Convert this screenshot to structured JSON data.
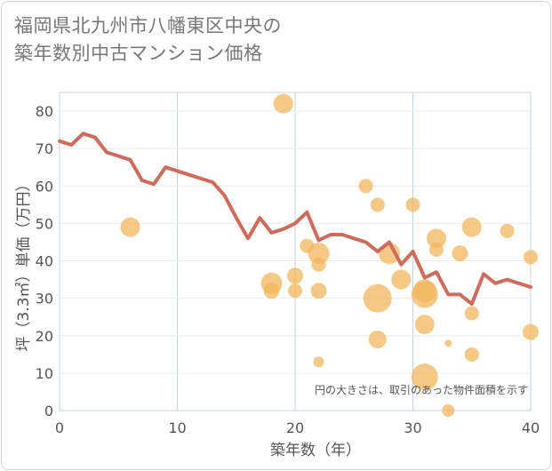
{
  "title_lines": [
    "福岡県北九州市八幡東区中央の",
    "築年数別中古マンション価格"
  ],
  "colors": {
    "line": "#d06a5b",
    "bubble": "#f2b55c",
    "grid": "#c5d3e0",
    "plot_bg": "#ffffff"
  },
  "chart_data": {
    "type": "scatter",
    "title": "福岡県北九州市八幡東区中央の築年数別中古マンション価格",
    "xlabel": "築年数（年）",
    "ylabel": "坪（3.3㎡）単価（万円）",
    "xlim": [
      0,
      40
    ],
    "ylim": [
      0,
      85
    ],
    "xticks": [
      "0",
      "10",
      "20",
      "30",
      "40"
    ],
    "yticks": [
      "0",
      "10",
      "20",
      "30",
      "40",
      "50",
      "60",
      "70",
      "80"
    ],
    "grid": true,
    "note": "円の大きさは、取引のあった物件面積を示す",
    "series": [
      {
        "kind": "line",
        "x": [
          0,
          1,
          2,
          3,
          4,
          5,
          6,
          7,
          8,
          9,
          10,
          11,
          12,
          13,
          14,
          15,
          16,
          17,
          18,
          19,
          20,
          21,
          22,
          23,
          24,
          25,
          26,
          27,
          28,
          29,
          30,
          31,
          32,
          33,
          34,
          35,
          36,
          37,
          38,
          39,
          40
        ],
        "y": [
          72,
          71,
          74,
          73,
          69,
          68,
          67,
          61.5,
          60.5,
          65,
          64,
          63,
          62,
          61,
          57.5,
          51.5,
          46,
          51.5,
          47.5,
          48.5,
          50,
          53,
          45.5,
          47,
          47,
          46,
          45,
          42.5,
          45,
          39,
          42.5,
          35.5,
          37,
          31,
          31,
          28.5,
          36.5,
          34,
          35,
          34,
          33
        ]
      },
      {
        "kind": "bubble",
        "points": [
          {
            "x": 6,
            "y": 49,
            "r": 11
          },
          {
            "x": 18,
            "y": 32,
            "r": 9
          },
          {
            "x": 18,
            "y": 34,
            "r": 12
          },
          {
            "x": 19,
            "y": 82,
            "r": 11
          },
          {
            "x": 20,
            "y": 36,
            "r": 9
          },
          {
            "x": 20,
            "y": 32,
            "r": 8
          },
          {
            "x": 21,
            "y": 44,
            "r": 8
          },
          {
            "x": 22,
            "y": 42,
            "r": 12
          },
          {
            "x": 22,
            "y": 39,
            "r": 8
          },
          {
            "x": 22,
            "y": 32,
            "r": 9
          },
          {
            "x": 22,
            "y": 13,
            "r": 6
          },
          {
            "x": 26,
            "y": 60,
            "r": 8
          },
          {
            "x": 27,
            "y": 55,
            "r": 8
          },
          {
            "x": 27,
            "y": 30,
            "r": 16
          },
          {
            "x": 27,
            "y": 19,
            "r": 10
          },
          {
            "x": 28,
            "y": 42,
            "r": 12
          },
          {
            "x": 29,
            "y": 35,
            "r": 11
          },
          {
            "x": 30,
            "y": 55,
            "r": 8
          },
          {
            "x": 31,
            "y": 32,
            "r": 13
          },
          {
            "x": 31,
            "y": 31,
            "r": 15
          },
          {
            "x": 31,
            "y": 23,
            "r": 11
          },
          {
            "x": 31,
            "y": 9,
            "r": 15
          },
          {
            "x": 32,
            "y": 46,
            "r": 11
          },
          {
            "x": 32,
            "y": 43,
            "r": 8
          },
          {
            "x": 33,
            "y": 18,
            "r": 4
          },
          {
            "x": 33,
            "y": 0,
            "r": 7
          },
          {
            "x": 34,
            "y": 42,
            "r": 9
          },
          {
            "x": 35,
            "y": 49,
            "r": 11
          },
          {
            "x": 35,
            "y": 26,
            "r": 8
          },
          {
            "x": 35,
            "y": 15,
            "r": 8
          },
          {
            "x": 38,
            "y": 48,
            "r": 8
          },
          {
            "x": 40,
            "y": 41,
            "r": 8
          },
          {
            "x": 40,
            "y": 21,
            "r": 9
          }
        ]
      }
    ]
  }
}
